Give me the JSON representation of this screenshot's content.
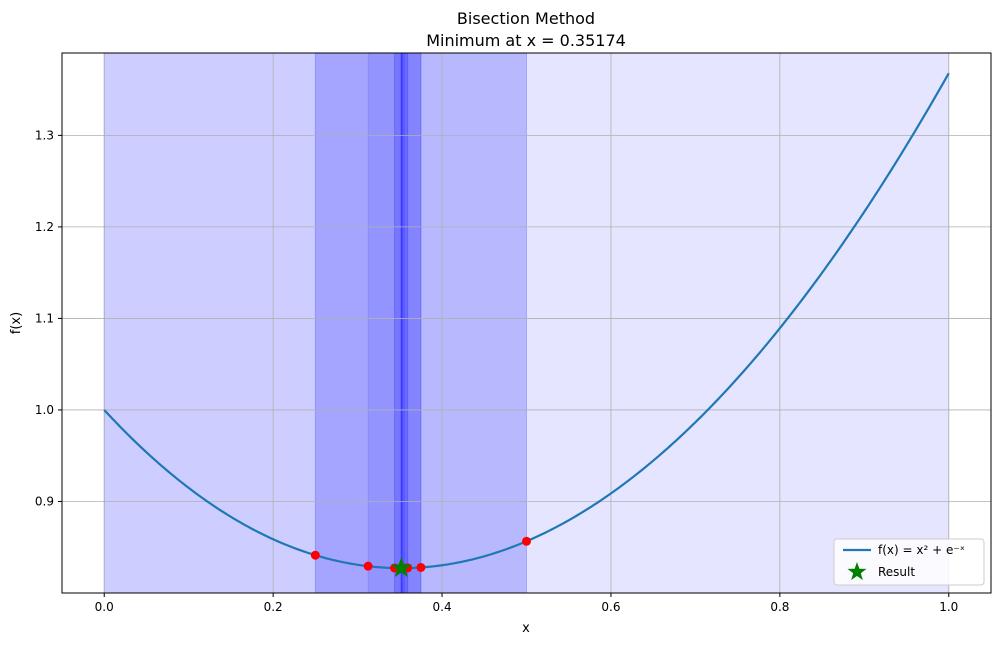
{
  "chart_data": {
    "type": "line",
    "title": "Bisection Method",
    "subtitle": "Minimum at x = 0.35174",
    "xlabel": "x",
    "ylabel": "f(x)",
    "xlim": [
      -0.05,
      1.05
    ],
    "ylim": [
      0.8,
      1.39
    ],
    "xticks": [
      0.0,
      0.2,
      0.4,
      0.6,
      0.8,
      1.0
    ],
    "xtick_labels": [
      "0.0",
      "0.2",
      "0.4",
      "0.6",
      "0.8",
      "1.0"
    ],
    "yticks": [
      0.9,
      1.0,
      1.1,
      1.2,
      1.3
    ],
    "ytick_labels": [
      "0.9",
      "1.0",
      "1.1",
      "1.2",
      "1.3"
    ],
    "grid": true,
    "legend": {
      "placement": "bottom-right",
      "entries": [
        {
          "label": "f(x) = x² + e⁻ˣ",
          "kind": "line",
          "color": "#1f77b4"
        },
        {
          "label": "Result",
          "kind": "star",
          "color": "#008000"
        }
      ]
    },
    "series": [
      {
        "name": "f(x) = x² + e⁻ˣ",
        "function": "x^2 + exp(-x)",
        "x_range": [
          0.0,
          1.0
        ],
        "color": "#1f77b4"
      }
    ],
    "intervals": [
      {
        "a": 0.0,
        "b": 1.0
      },
      {
        "a": 0.0,
        "b": 0.5
      },
      {
        "a": 0.25,
        "b": 0.5
      },
      {
        "a": 0.25,
        "b": 0.375
      },
      {
        "a": 0.3125,
        "b": 0.375
      },
      {
        "a": 0.34375,
        "b": 0.375
      },
      {
        "a": 0.34375,
        "b": 0.359375
      },
      {
        "a": 0.3515625,
        "b": 0.359375
      },
      {
        "a": 0.3515625,
        "b": 0.35546875
      },
      {
        "a": 0.3515625,
        "b": 0.353515625
      },
      {
        "a": 0.3515625,
        "b": 0.3525390625
      }
    ],
    "interval_color": "#0000ff",
    "midpoints": {
      "x": [
        0.5,
        0.25,
        0.375,
        0.3125,
        0.34375,
        0.359375,
        0.3515625,
        0.35546875,
        0.353515625,
        0.3525390625
      ],
      "y": [
        0.8565,
        0.8413,
        0.8279,
        0.8293,
        0.8273,
        0.8274,
        0.8272,
        0.8272,
        0.8272,
        0.8272
      ],
      "color": "#ff0000"
    },
    "result": {
      "x": 0.35174,
      "y": 0.8272,
      "color": "#008000",
      "marker": "star"
    }
  }
}
